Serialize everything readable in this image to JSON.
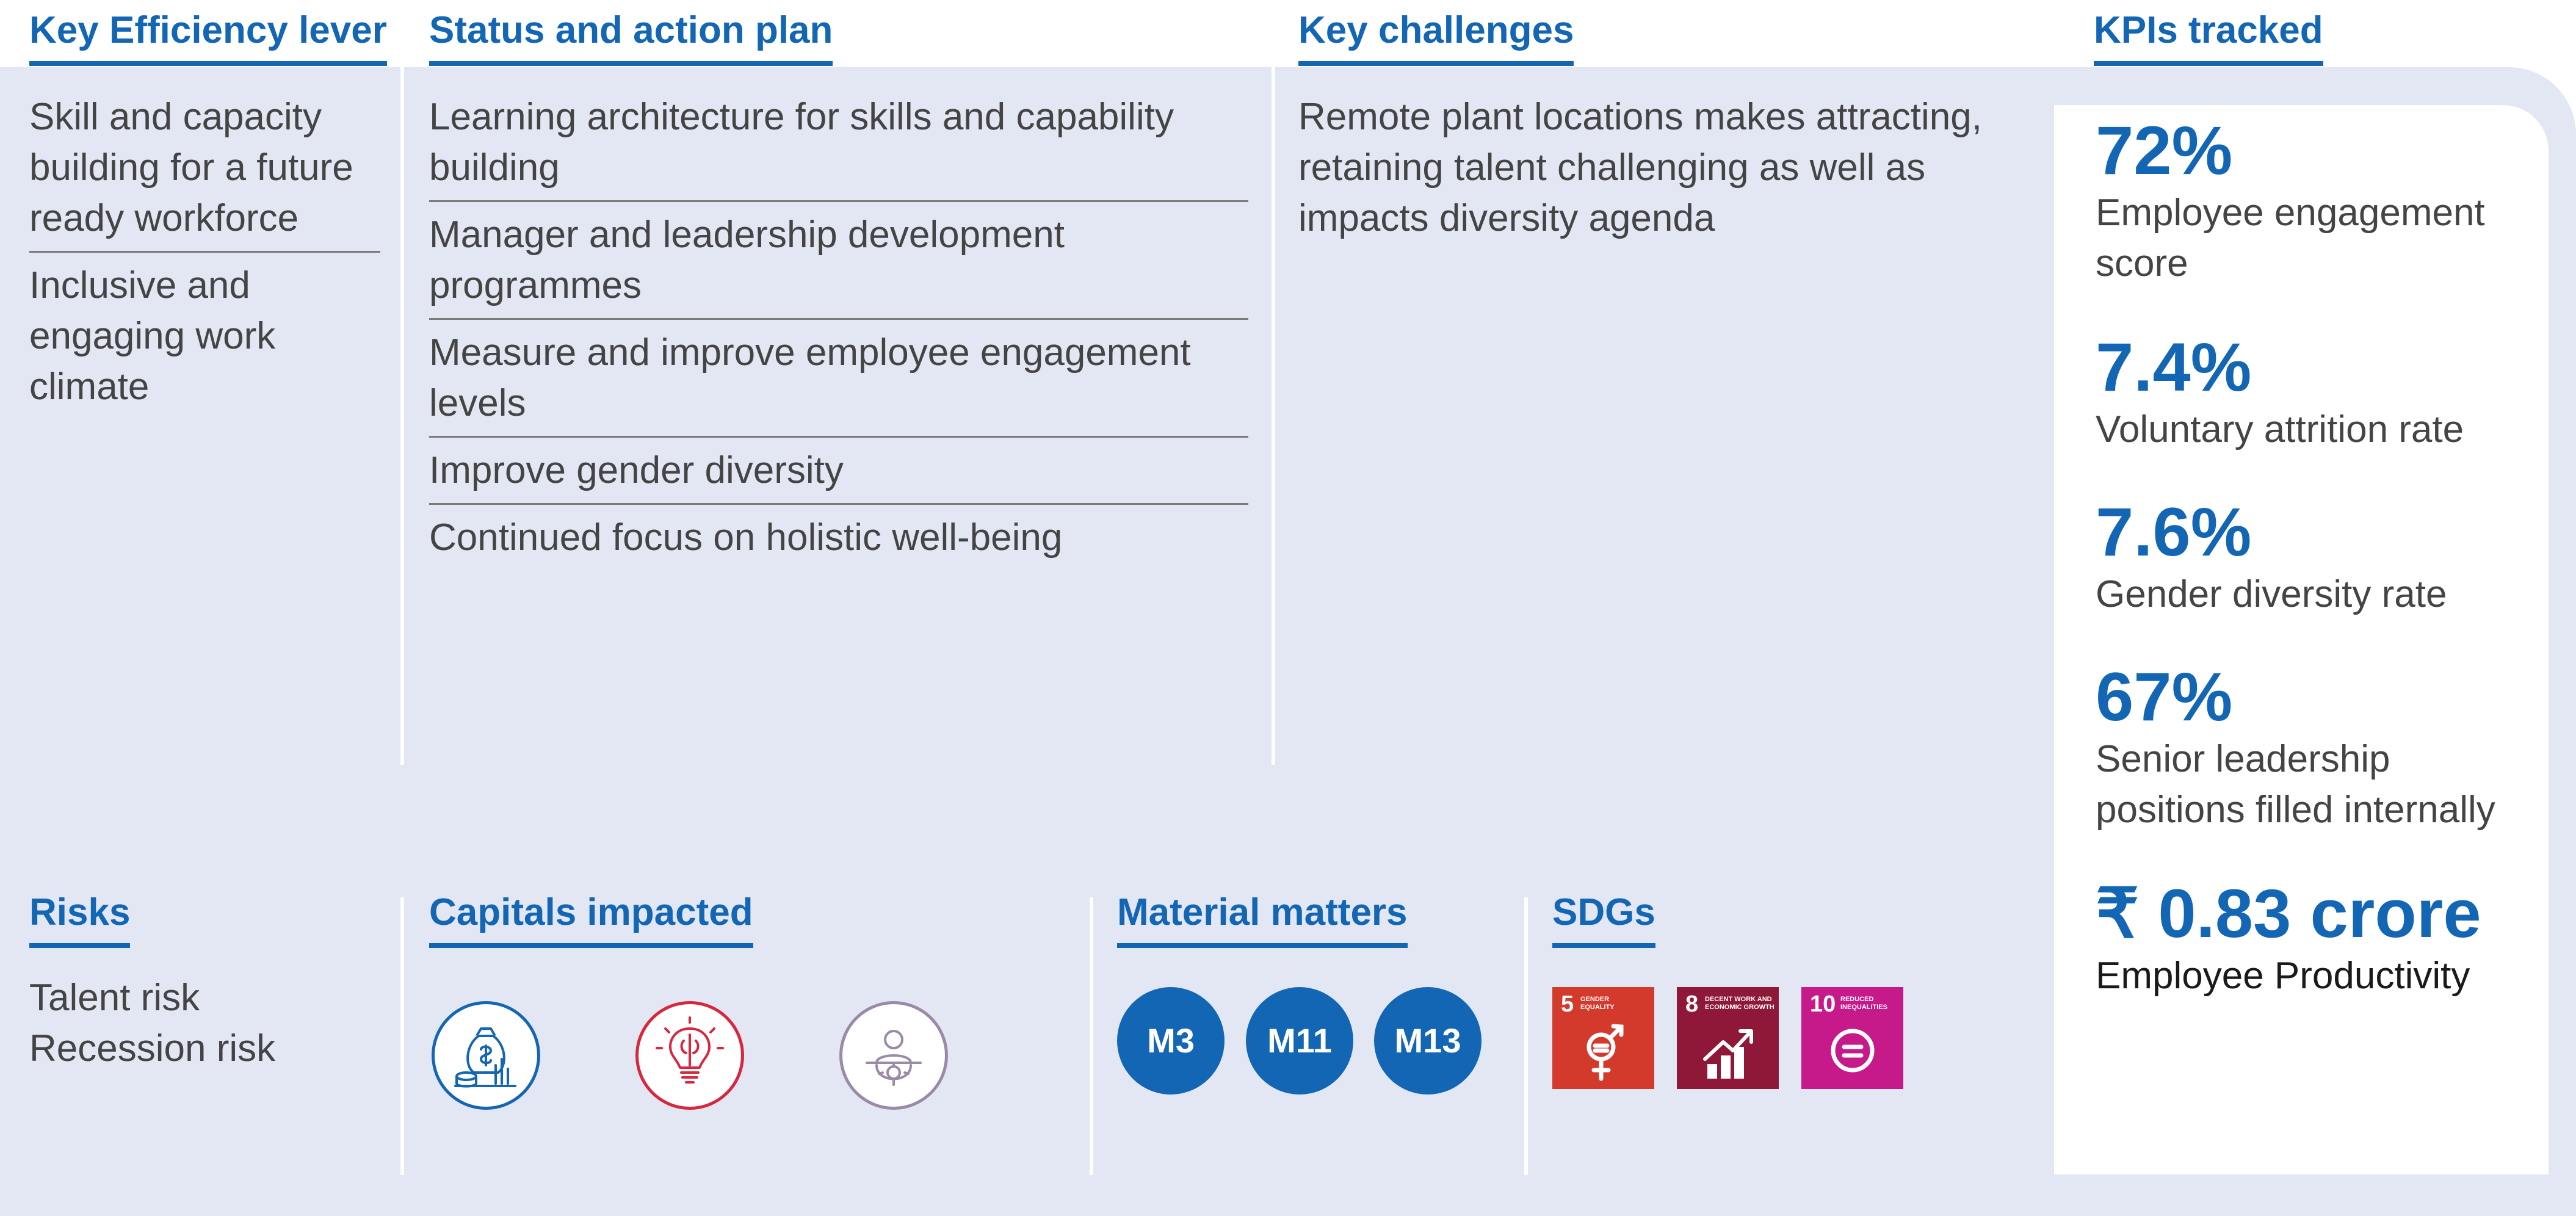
{
  "columns": {
    "lever": {
      "heading": "Key Efficiency lever",
      "items": [
        "Skill and capacity building for a future ready workforce",
        "Inclusive and engaging work climate"
      ]
    },
    "status": {
      "heading": "Status and action plan",
      "items": [
        "Learning architecture for skills and capability building",
        "Manager and leadership development programmes",
        "Measure and improve employee engagement levels",
        "Improve gender diversity",
        "Continued focus on holistic well-being"
      ]
    },
    "challenges": {
      "heading": "Key challenges",
      "text": "Remote plant locations makes attracting, retaining talent challenging as well as impacts diversity agenda"
    },
    "kpis": {
      "heading": "KPIs tracked",
      "items": [
        {
          "value": "72%",
          "label": "Employee engagement score"
        },
        {
          "value": "7.4%",
          "label": "Voluntary attrition rate"
        },
        {
          "value": "7.6%",
          "label": "Gender diversity rate"
        },
        {
          "value": "67%",
          "label": "Senior leadership positions filled internally"
        },
        {
          "value": "₹ 0.83 crore",
          "label": "Employee Productivity"
        }
      ]
    }
  },
  "risks": {
    "heading": "Risks",
    "items": [
      "Talent risk",
      "Recession risk"
    ]
  },
  "capitals": {
    "heading": "Capitals impacted",
    "icons": [
      {
        "name": "financial-capital-icon",
        "color": "#1366b3"
      },
      {
        "name": "intellectual-capital-icon",
        "color": "#d7263d"
      },
      {
        "name": "human-capital-icon",
        "color": "#9a8aa8"
      }
    ]
  },
  "material_matters": {
    "heading": "Material matters",
    "items": [
      "M3",
      "M11",
      "M13"
    ]
  },
  "sdgs": {
    "heading": "SDGs",
    "items": [
      {
        "number": "5",
        "caption_line1": "GENDER",
        "caption_line2": "EQUALITY",
        "color": "#d33a2c"
      },
      {
        "number": "8",
        "caption_line1": "DECENT WORK AND",
        "caption_line2": "ECONOMIC GROWTH",
        "color": "#8f1838"
      },
      {
        "number": "10",
        "caption_line1": "REDUCED",
        "caption_line2": "INEQUALITIES",
        "color": "#c6198a"
      }
    ]
  },
  "colors": {
    "accent": "#1366b3",
    "panel": "#e2e7f3",
    "divider": "#7a7a7a"
  }
}
